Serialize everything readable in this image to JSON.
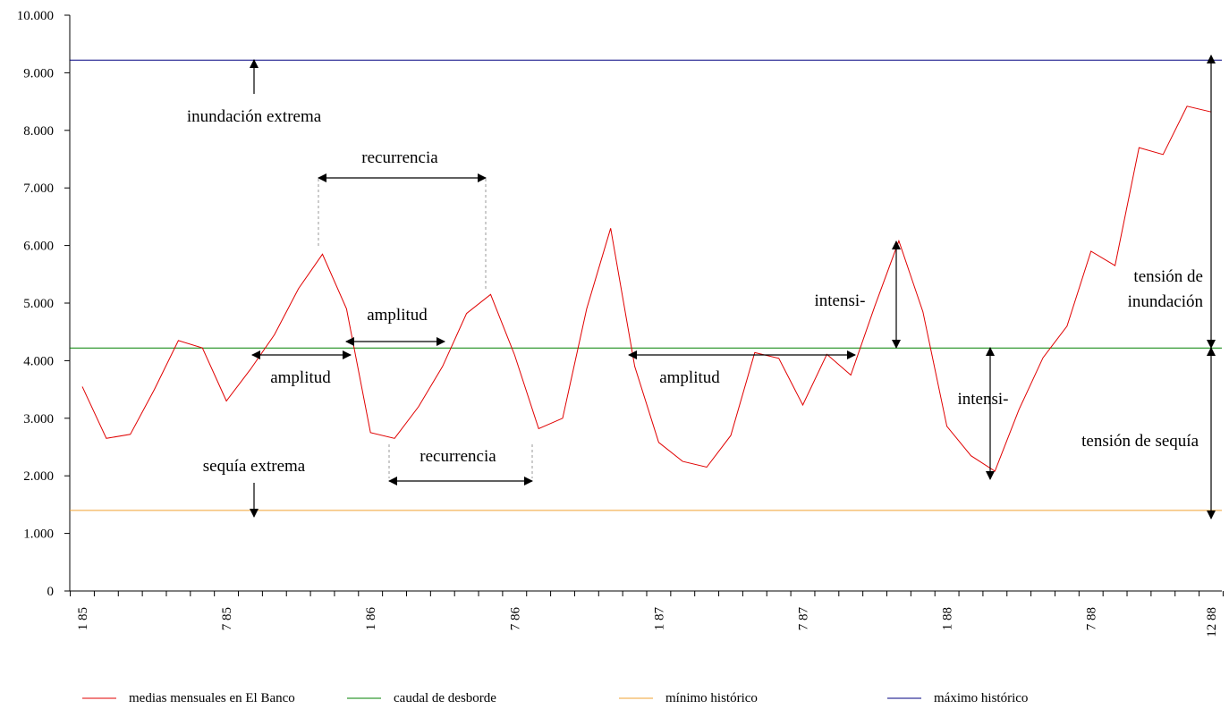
{
  "chart_data": {
    "type": "line",
    "ylim": [
      0,
      10000
    ],
    "y_ticks": [
      "0",
      "1.000",
      "2.000",
      "3.000",
      "4.000",
      "5.000",
      "6.000",
      "7.000",
      "8.000",
      "9.000",
      "10.000"
    ],
    "x_tick_labels": [
      "1 85",
      "7 85",
      "1 86",
      "7 86",
      "1 87",
      "7 87",
      "1 88",
      "7 88",
      "12 88"
    ],
    "x_tick_label_months": [
      0,
      6,
      12,
      18,
      24,
      30,
      36,
      42,
      47
    ],
    "months_count": 48,
    "grid": false,
    "legend_position": "bottom",
    "series": [
      {
        "name": "medias mensuales en El Banco",
        "color": "#e00000",
        "values": [
          3550,
          2650,
          2720,
          3500,
          4350,
          4220,
          3300,
          3850,
          4450,
          5250,
          5850,
          4900,
          2750,
          2650,
          3200,
          3900,
          4820,
          5150,
          4100,
          2820,
          3000,
          4900,
          6300,
          3900,
          2580,
          2250,
          2150,
          2700,
          4140,
          4040,
          3230,
          4110,
          3750,
          4950,
          6080,
          4850,
          2860,
          2350,
          2080,
          3150,
          4050,
          4600,
          5900,
          5650,
          7700,
          7580,
          8420,
          8320
        ]
      },
      {
        "name": "caudal de desborde",
        "color": "#008000",
        "constant": 4220
      },
      {
        "name": "mínimo histórico",
        "color": "#f0a030",
        "constant": 1400
      },
      {
        "name": "máximo histórico",
        "color": "#000080",
        "constant": 9220
      }
    ],
    "annotations": {
      "inundacion_extrema": "inundación extrema",
      "sequia_extrema": "sequía extrema",
      "recurrencia_top": "recurrencia",
      "recurrencia_bottom": "recurrencia",
      "amplitud_1": "amplitud",
      "amplitud_2": "amplitud",
      "amplitud_3": "amplitud",
      "intensi_1": "intensi-",
      "intensi_2": "intensi-",
      "tension_inundacion_line1": "tensión de",
      "tension_inundacion_line2": "inundación",
      "tension_sequia": "tensión de sequía"
    }
  }
}
